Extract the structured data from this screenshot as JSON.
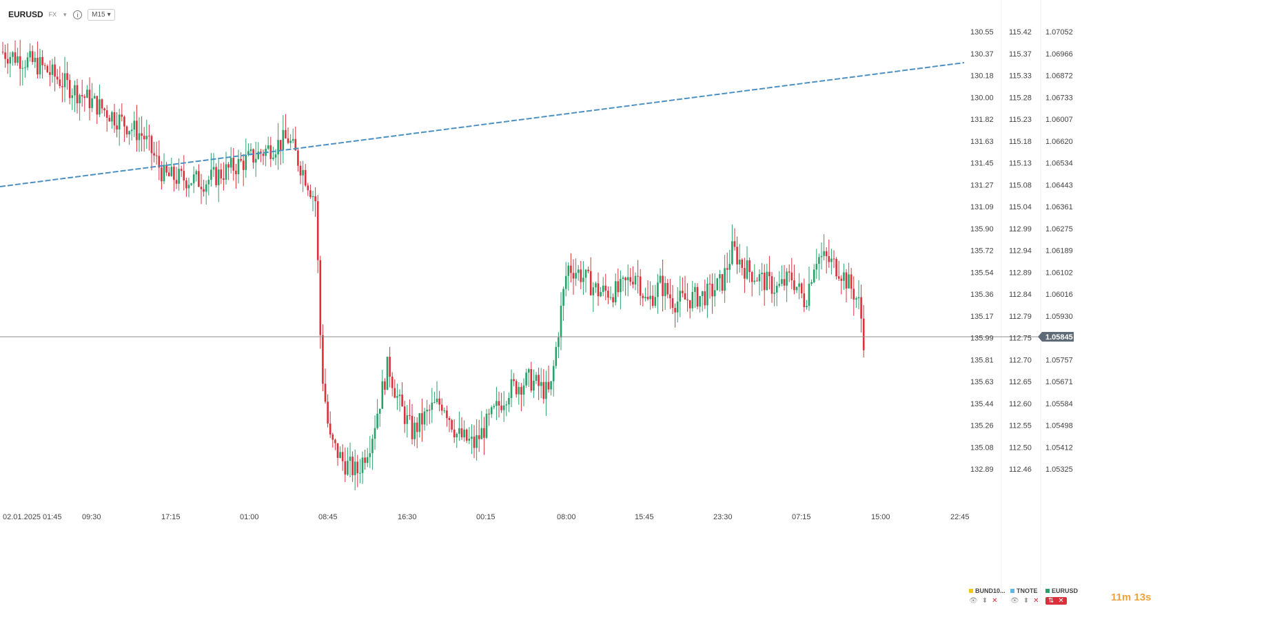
{
  "header": {
    "symbol": "EURUSD",
    "market": "FX",
    "info_label": "i",
    "timeframe": "M15",
    "dropdown_caret": "▾"
  },
  "colors": {
    "up": "#26a269",
    "down": "#d9303b",
    "trendline": "#4a90c2",
    "label_bg": "#5f6a77",
    "timer": "#f0a33c"
  },
  "axes": {
    "bund_prices": [
      "130.55",
      "130.37",
      "130.18",
      "130.00",
      "131.82",
      "131.63",
      "131.45",
      "131.27",
      "131.09",
      "135.90",
      "135.72",
      "135.54",
      "135.36",
      "135.17",
      "135.99",
      "135.81",
      "135.63",
      "135.44",
      "135.26",
      "135.08",
      "132.89"
    ],
    "tnote_prices": [
      "115.42",
      "115.37",
      "115.33",
      "115.28",
      "115.23",
      "115.18",
      "115.13",
      "115.08",
      "115.04",
      "112.99",
      "112.94",
      "112.89",
      "112.84",
      "112.79",
      "112.75",
      "112.70",
      "112.65",
      "112.60",
      "112.55",
      "112.50",
      "112.46"
    ],
    "eurusd_prices": [
      "1.07052",
      "1.06966",
      "1.06872",
      "1.06733",
      "1.06007",
      "1.06620",
      "1.06534",
      "1.06443",
      "1.06361",
      "1.06275",
      "1.06189",
      "1.06102",
      "1.06016",
      "1.05930",
      "1.05845",
      "1.05757",
      "1.05671",
      "1.05584",
      "1.05498",
      "1.05412",
      "1.05325"
    ],
    "current_price": "1.05845",
    "time_labels": [
      "02.01.2025",
      "01:45",
      "09:30",
      "17:15",
      "01:00",
      "08:45",
      "16:30",
      "00:15",
      "08:00",
      "15:45",
      "23:30",
      "07:15",
      "15:00",
      "22:45"
    ]
  },
  "timer": "11m 13s",
  "legends": [
    {
      "name": "BUND10...",
      "color": "#f5c518",
      "ctrl_eye": "👁",
      "ctrl_updown": "⬍",
      "ctrl_close": "✕"
    },
    {
      "name": "TNOTE",
      "color": "#5bb8e8",
      "ctrl_eye": "👁",
      "ctrl_updown": "⬍",
      "ctrl_close": "✕"
    },
    {
      "name": "EURUSD",
      "color": "#26a269",
      "ctrl_eye": "⇅",
      "ctrl_updown": "",
      "ctrl_close": "✕"
    }
  ],
  "chart_data": {
    "type": "candlestick",
    "symbol": "EURUSD",
    "timeframe": "M15",
    "ylim": [
      1.0524,
      1.0712
    ],
    "trendline": {
      "from": [
        0,
        1.0643
      ],
      "to": [
        1399,
        1.069
      ]
    },
    "path_points": [
      [
        0,
        1.07
      ],
      [
        60,
        1.0694
      ],
      [
        100,
        1.0686
      ],
      [
        150,
        1.0677
      ],
      [
        210,
        1.0666
      ],
      [
        240,
        1.065
      ],
      [
        300,
        1.0648
      ],
      [
        350,
        1.0655
      ],
      [
        420,
        1.0665
      ],
      [
        445,
        1.065
      ],
      [
        460,
        1.064
      ],
      [
        466,
        1.059
      ],
      [
        470,
        1.057
      ],
      [
        480,
        1.0545
      ],
      [
        500,
        1.0536
      ],
      [
        520,
        1.0532
      ],
      [
        540,
        1.0545
      ],
      [
        555,
        1.0563
      ],
      [
        565,
        1.0575
      ],
      [
        580,
        1.056
      ],
      [
        600,
        1.0548
      ],
      [
        630,
        1.0558
      ],
      [
        645,
        1.056
      ],
      [
        665,
        1.0547
      ],
      [
        690,
        1.0543
      ],
      [
        710,
        1.0552
      ],
      [
        740,
        1.0565
      ],
      [
        770,
        1.0569
      ],
      [
        800,
        1.0563
      ],
      [
        815,
        1.0595
      ],
      [
        825,
        1.0614
      ],
      [
        840,
        1.0612
      ],
      [
        870,
        1.0604
      ],
      [
        900,
        1.0604
      ],
      [
        925,
        1.0612
      ],
      [
        940,
        1.0599
      ],
      [
        960,
        1.0607
      ],
      [
        980,
        1.06
      ],
      [
        1000,
        1.0601
      ],
      [
        1030,
        1.0603
      ],
      [
        1050,
        1.0608
      ],
      [
        1065,
        1.0621
      ],
      [
        1080,
        1.0614
      ],
      [
        1100,
        1.061
      ],
      [
        1130,
        1.0605
      ],
      [
        1150,
        1.061
      ],
      [
        1170,
        1.06
      ],
      [
        1185,
        1.0618
      ],
      [
        1200,
        1.0617
      ],
      [
        1220,
        1.0613
      ],
      [
        1240,
        1.0604
      ],
      [
        1250,
        1.0598
      ],
      [
        1254,
        1.0585
      ]
    ]
  }
}
